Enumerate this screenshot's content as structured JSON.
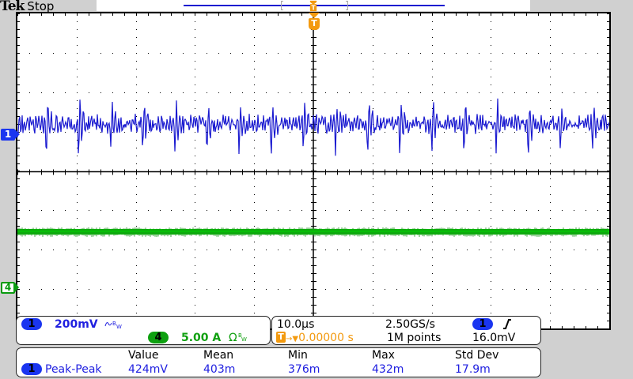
{
  "header": {
    "brand": "Tek",
    "acquisition_state": "Stop"
  },
  "record_view": {
    "record_line_color": "#1a1ad0",
    "bracket_color": "#a8a8a8",
    "trigger_position_label": "T"
  },
  "trigger_marker": {
    "label": "T",
    "color": "#f39a0f"
  },
  "channels": [
    {
      "id": "1",
      "label": "1",
      "color": "#1a35f0",
      "marker_label": "1"
    },
    {
      "id": "4",
      "label": "4",
      "color": "#0a9a10",
      "marker_label": "4"
    }
  ],
  "graticule": {
    "horizontal_divisions": 10,
    "vertical_divisions": 8
  },
  "vertical_settings": {
    "ch1": {
      "badge": "1",
      "scale": "200mV",
      "coupling_icon": "ac-bandwidth-limit-icon",
      "bw_label": "BW"
    },
    "ch4": {
      "badge": "4",
      "scale": "5.00 A",
      "coupling_icon": "ohm-bandwidth-limit-icon",
      "termination_symbol": "Ω",
      "bw_label": "BW"
    }
  },
  "horizontal_settings": {
    "time_per_div": "10.0µs",
    "sample_rate": "2.50GS/s",
    "trigger_badge": "T",
    "trigger_position": "0.00000 s",
    "record_length": "1M points",
    "trigger_source": "1",
    "trigger_slope_icon": "rising-edge-icon",
    "trigger_level": "16.0mV"
  },
  "measurements": {
    "headers": [
      "Value",
      "Mean",
      "Min",
      "Max",
      "Std Dev"
    ],
    "rows": [
      {
        "source": "1",
        "name": "Peak-Peak",
        "value": "424mV",
        "mean": "403m",
        "min": "376m",
        "max": "432m",
        "std_dev": "17.9m"
      }
    ]
  }
}
